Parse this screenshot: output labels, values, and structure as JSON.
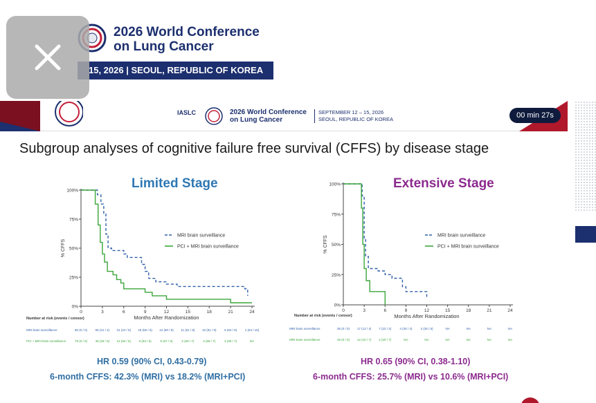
{
  "banner": {
    "title_line1": "2026 World Conference",
    "title_line2": "on Lung Cancer",
    "date_location": "15, 2026 | SEOUL, REPUBLIC OF KOREA"
  },
  "slide_header": {
    "org": "IASLC",
    "title_line1": "2026 World Conference",
    "title_line2": "on Lung Cancer",
    "date_line1": "SEPTEMBER 12 – 15, 2026",
    "date_line2": "SEOUL, REPUBLIC OF KOREA",
    "timer": "00 min 27s"
  },
  "slide": {
    "title": "Subgroup analyses of cognitive failure free survival (CFFS) by disease stage"
  },
  "colors": {
    "mri": "#2e5fa8",
    "pci": "#3aa63a",
    "limited_accent": "#2f78b4",
    "extensive_accent": "#8b2a8e",
    "navy": "#1c2f6e"
  },
  "results": {
    "limited_hr": "HR 0.59 (90% CI, 0.43-0.79)",
    "limited_6m": "6-month CFFS: 42.3% (MRI) vs 18.2% (MRI+PCI)",
    "extensive_hr": "HR 0.65 (90% CI, 0.38-1.10)",
    "extensive_6m": "6-month CFFS: 25.7% (MRI) vs 10.6% (MRI+PCI)"
  },
  "chart_data": [
    {
      "type": "line",
      "title": "Limited Stage",
      "xlabel": "Months After Randomization",
      "ylabel": "% CFFS",
      "xlim": [
        0,
        24
      ],
      "ylim": [
        0,
        100
      ],
      "x_ticks": [
        0,
        3,
        6,
        9,
        12,
        15,
        18,
        21,
        24
      ],
      "y_ticks": [
        "0%",
        "25%",
        "50%",
        "75%",
        "100%"
      ],
      "legend_position": "right",
      "series": [
        {
          "name": "MRI brain surveillance",
          "style": "dashed",
          "points": [
            [
              0,
              100
            ],
            [
              2.3,
              100
            ],
            [
              2.3,
              96
            ],
            [
              2.8,
              96
            ],
            [
              2.8,
              88
            ],
            [
              3.2,
              88
            ],
            [
              3.2,
              80
            ],
            [
              3.5,
              80
            ],
            [
              3.5,
              62
            ],
            [
              3.8,
              62
            ],
            [
              3.8,
              50
            ],
            [
              4.3,
              50
            ],
            [
              4.3,
              48
            ],
            [
              6,
              48
            ],
            [
              6,
              45
            ],
            [
              6.5,
              45
            ],
            [
              6.5,
              42
            ],
            [
              8.5,
              42
            ],
            [
              8.5,
              36
            ],
            [
              9,
              36
            ],
            [
              9,
              30
            ],
            [
              9.5,
              30
            ],
            [
              9.5,
              24
            ],
            [
              10.5,
              24
            ],
            [
              10.5,
              21
            ],
            [
              12,
              21
            ],
            [
              12,
              19
            ],
            [
              13.5,
              19
            ],
            [
              13.5,
              17
            ],
            [
              23,
              17
            ],
            [
              23,
              15
            ],
            [
              23.4,
              15
            ],
            [
              23.4,
              9
            ]
          ]
        },
        {
          "name": "PCI + MRI brain surveillance",
          "style": "solid",
          "points": [
            [
              0,
              100
            ],
            [
              2,
              100
            ],
            [
              2,
              88
            ],
            [
              2.4,
              88
            ],
            [
              2.4,
              70
            ],
            [
              2.7,
              70
            ],
            [
              2.7,
              55
            ],
            [
              3,
              55
            ],
            [
              3,
              45
            ],
            [
              3.3,
              45
            ],
            [
              3.3,
              38
            ],
            [
              3.7,
              38
            ],
            [
              3.7,
              30
            ],
            [
              4.5,
              30
            ],
            [
              4.5,
              27
            ],
            [
              5,
              27
            ],
            [
              5,
              23
            ],
            [
              5.6,
              23
            ],
            [
              5.6,
              20
            ],
            [
              6,
              20
            ],
            [
              6,
              15
            ],
            [
              9,
              15
            ],
            [
              9,
              12
            ],
            [
              10,
              12
            ],
            [
              10,
              9
            ],
            [
              12,
              9
            ],
            [
              12,
              6
            ],
            [
              21,
              6
            ],
            [
              21,
              3
            ],
            [
              24,
              3
            ]
          ]
        }
      ],
      "at_risk": {
        "label": "Number at risk (events / censor)",
        "rows": [
          {
            "name": "MRI brain surveillance",
            "values": [
              "80 (0 / 0)",
              "55 (21 / 4)",
              "31 (44 / 5)",
              "18 (55 / 6)",
              "12 (60 / 8)",
              "11 (61 / 8)",
              "10 (61 / 9)",
              "6 (63 / 9)",
              "1 (64 / 15)"
            ]
          },
          {
            "name": "PCI + MRI brain surveillance",
            "values": [
              "79 (0 / 0)",
              "46 (25 / 5)",
              "12 (60 / 6)",
              "9 (63 / 6)",
              "5 (67 / 6)",
              "2 (69 / 7)",
              "2 (69 / 7)",
              "2 (69 / 7)",
              "NA"
            ]
          }
        ]
      }
    },
    {
      "type": "line",
      "title": "Extensive Stage",
      "xlabel": "Months After Randomization",
      "ylabel": "% CFFS",
      "xlim": [
        0,
        24
      ],
      "ylim": [
        0,
        100
      ],
      "x_ticks": [
        0,
        3,
        6,
        9,
        12,
        15,
        18,
        21,
        24
      ],
      "y_ticks": [
        "0%",
        "25%",
        "50%",
        "75%",
        "100%"
      ],
      "legend_position": "right",
      "series": [
        {
          "name": "MRI brain surveillance",
          "style": "dashed",
          "points": [
            [
              0,
              100
            ],
            [
              2.7,
              100
            ],
            [
              2.7,
              90
            ],
            [
              3,
              90
            ],
            [
              3,
              55
            ],
            [
              3.2,
              55
            ],
            [
              3.2,
              40
            ],
            [
              3.6,
              40
            ],
            [
              3.6,
              30
            ],
            [
              5,
              30
            ],
            [
              5,
              28
            ],
            [
              6,
              28
            ],
            [
              6,
              25
            ],
            [
              7,
              25
            ],
            [
              7,
              22
            ],
            [
              8.5,
              22
            ],
            [
              8.5,
              15
            ],
            [
              9,
              15
            ],
            [
              9,
              11
            ],
            [
              12,
              11
            ],
            [
              12,
              5
            ]
          ]
        },
        {
          "name": "PCI + MRI brain surveillance",
          "style": "solid",
          "points": [
            [
              0,
              100
            ],
            [
              2.6,
              100
            ],
            [
              2.6,
              80
            ],
            [
              2.8,
              80
            ],
            [
              2.8,
              50
            ],
            [
              3,
              50
            ],
            [
              3,
              30
            ],
            [
              3.3,
              30
            ],
            [
              3.3,
              20
            ],
            [
              3.8,
              20
            ],
            [
              3.8,
              11
            ],
            [
              6,
              11
            ],
            [
              6,
              0
            ]
          ]
        }
      ],
      "at_risk": {
        "label": "Number at risk (events / censor)",
        "rows": [
          {
            "name": "MRI brain surveillance",
            "values": [
              "35 (0 / 0)",
              "17 (12 / 4)",
              "7 (22 / 4)",
              "4 (25 / 4)",
              "2 (26 / 5)",
              "NA",
              "NA",
              "NA",
              "NA"
            ]
          },
          {
            "name": "MRI brain surveillance",
            "values": [
              "28 (0 / 0)",
              "12 (10 / 7)",
              "2 (20 / 7)",
              "NA",
              "NA",
              "NA",
              "NA",
              "NA",
              "NA"
            ]
          }
        ]
      }
    }
  ]
}
